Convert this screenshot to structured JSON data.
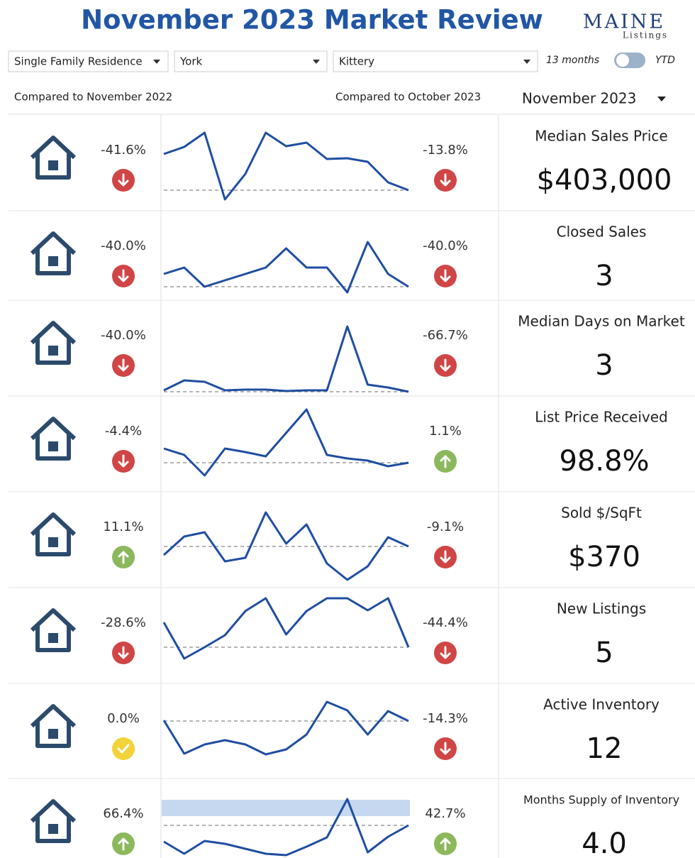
{
  "header": {
    "title": "November 2023 Market Review",
    "logo": {
      "name": "MAINE",
      "sub": "Listings"
    }
  },
  "filters": {
    "property_type": "Single Family Residence",
    "county": "York",
    "town": "Kittery",
    "toggle_left": "13 months",
    "toggle_right": "YTD"
  },
  "columns": {
    "yoy": "Compared to November 2022",
    "mom": "Compared to October 2023",
    "period": "November 2023"
  },
  "rows": [
    {
      "yoy": "-41.6%",
      "yoy_dir": "down",
      "mom": "-13.8%",
      "mom_dir": "down",
      "metric": "Median Sales Price",
      "value": "$403,000",
      "series": [
        75,
        85,
        105,
        11,
        47,
        105,
        86,
        91,
        68,
        69,
        64,
        35,
        24
      ]
    },
    {
      "yoy": "-40.0%",
      "yoy_dir": "down",
      "mom": "-40.0%",
      "mom_dir": "down",
      "metric": "Closed Sales",
      "value": "3",
      "series": [
        41,
        50,
        23,
        32,
        41,
        50,
        77,
        50,
        50,
        15,
        86,
        41,
        23
      ]
    },
    {
      "yoy": "-40.0%",
      "yoy_dir": "down",
      "mom": "-66.7%",
      "mom_dir": "down",
      "metric": "Median Days on Market",
      "value": "3",
      "series": [
        3,
        17,
        15,
        3,
        4,
        4,
        2,
        3,
        3,
        93,
        11,
        7,
        1
      ]
    },
    {
      "yoy": "-4.4%",
      "yoy_dir": "down",
      "mom": "1.1%",
      "mom_dir": "up",
      "metric": "List Price Received",
      "value": "98.8%",
      "series": [
        56,
        47,
        18,
        56,
        51,
        45,
        78,
        111,
        47,
        42,
        39,
        31,
        36
      ]
    },
    {
      "yoy": "11.1%",
      "yoy_dir": "up",
      "mom": "-9.1%",
      "mom_dir": "down",
      "metric": "Sold $/SqFt",
      "value": "$370",
      "series": [
        41,
        67,
        73,
        32,
        37,
        101,
        57,
        84,
        29,
        6,
        25,
        66,
        53
      ]
    },
    {
      "yoy": "-28.6%",
      "yoy_dir": "down",
      "mom": "-44.4%",
      "mom_dir": "down",
      "metric": "New Listings",
      "value": "5",
      "series": [
        81,
        30,
        46,
        63,
        97,
        115,
        64,
        97,
        115,
        115,
        98,
        115,
        46
      ]
    },
    {
      "yoy": "0.0%",
      "yoy_dir": "flat",
      "mom": "-14.3%",
      "mom_dir": "down",
      "metric": "Active Inventory",
      "value": "12",
      "series": [
        78,
        31,
        44,
        50,
        44,
        30,
        37,
        58,
        104,
        92,
        58,
        91,
        77
      ]
    },
    {
      "yoy": "66.4%",
      "yoy_dir": "up",
      "mom": "42.7%",
      "mom_dir": "up",
      "metric": "Months Supply of Inventory",
      "value": "4.0",
      "series": [
        41,
        24,
        42,
        38,
        31,
        24,
        22,
        34,
        47,
        101,
        26,
        48,
        64
      ],
      "band": [
        77,
        100
      ]
    }
  ]
}
